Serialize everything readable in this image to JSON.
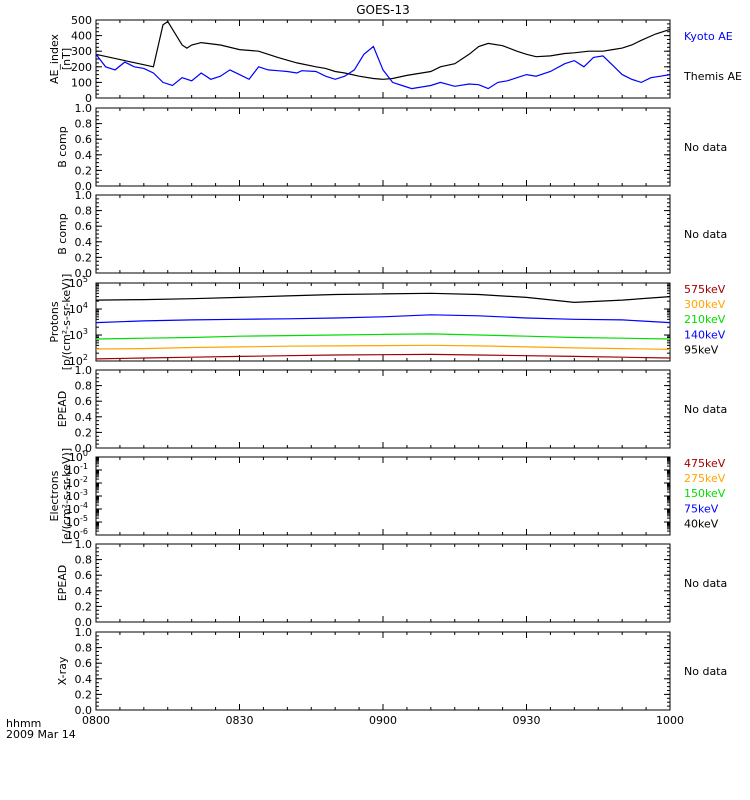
{
  "title": "GOES-13",
  "footer": {
    "line1": "hhmm",
    "line2": "2009 Mar 14"
  },
  "time_axis": {
    "ticks": [
      "0800",
      "0830",
      "0900",
      "0930",
      "1000"
    ],
    "tick_minutes": [
      0,
      30,
      60,
      90,
      120
    ]
  },
  "colors": {
    "black": "#000000",
    "blue": "#0000ff",
    "red": "#a00000",
    "orange": "#ffa500",
    "green": "#00dd00"
  },
  "chart_data": [
    {
      "id": "ae",
      "type": "line",
      "ylabel_lines": [
        "AE_index",
        "[nT]"
      ],
      "ylim": [
        0,
        500
      ],
      "yticks": [
        0,
        100,
        200,
        300,
        400,
        500
      ],
      "scale": "linear",
      "x_unit": "minutes after 08:00 UT",
      "legend": [
        {
          "text": "Kyoto AE",
          "color": "#0000ff"
        },
        {
          "text": "Themis AE",
          "color": "#000000"
        }
      ],
      "series": [
        {
          "name": "Themis AE",
          "color": "#000000",
          "x": [
            0,
            3,
            6,
            9,
            12,
            14,
            15,
            18,
            19,
            20,
            22,
            26,
            30,
            34,
            38,
            42,
            46,
            48,
            50,
            52,
            55,
            58,
            60,
            62,
            65,
            70,
            72,
            75,
            78,
            80,
            82,
            85,
            88,
            90,
            92,
            95,
            98,
            100,
            103,
            106,
            108,
            110,
            112,
            114,
            117,
            120
          ],
          "y": [
            280,
            260,
            240,
            220,
            200,
            470,
            490,
            340,
            320,
            340,
            355,
            340,
            310,
            300,
            260,
            225,
            200,
            190,
            170,
            160,
            140,
            125,
            120,
            125,
            145,
            170,
            200,
            220,
            280,
            330,
            350,
            335,
            300,
            280,
            265,
            270,
            285,
            290,
            300,
            300,
            310,
            320,
            340,
            370,
            410,
            440
          ]
        },
        {
          "name": "Kyoto AE",
          "color": "#0000ff",
          "x": [
            0,
            2,
            4,
            6,
            8,
            10,
            12,
            14,
            16,
            18,
            20,
            22,
            24,
            26,
            28,
            30,
            32,
            34,
            36,
            38,
            40,
            42,
            43,
            46,
            48,
            50,
            52,
            54,
            56,
            58,
            60,
            62,
            64,
            66,
            70,
            72,
            75,
            78,
            80,
            82,
            84,
            86,
            88,
            90,
            92,
            95,
            98,
            100,
            102,
            104,
            106,
            108,
            110,
            112,
            114,
            116,
            118,
            120
          ],
          "y": [
            280,
            200,
            180,
            230,
            200,
            190,
            160,
            100,
            80,
            130,
            110,
            160,
            120,
            140,
            180,
            150,
            120,
            200,
            180,
            175,
            170,
            160,
            175,
            170,
            140,
            120,
            140,
            180,
            280,
            330,
            180,
            100,
            80,
            60,
            80,
            100,
            75,
            90,
            85,
            60,
            100,
            110,
            130,
            150,
            140,
            170,
            220,
            240,
            200,
            260,
            270,
            210,
            150,
            120,
            100,
            130,
            140,
            150
          ]
        }
      ]
    },
    {
      "id": "bcomp1",
      "type": "line",
      "ylabel_lines": [
        "B comp"
      ],
      "ylim": [
        0,
        1
      ],
      "yticks": [
        0.0,
        0.2,
        0.4,
        0.6,
        0.8,
        1.0
      ],
      "tick_labels": [
        "0.0",
        "0.2",
        "0.4",
        "0.6",
        "0.8",
        "1.0"
      ],
      "scale": "linear",
      "status": "No data",
      "series": []
    },
    {
      "id": "bcomp2",
      "type": "line",
      "ylabel_lines": [
        "B comp"
      ],
      "ylim": [
        0,
        1
      ],
      "yticks": [
        0.0,
        0.2,
        0.4,
        0.6,
        0.8,
        1.0
      ],
      "tick_labels": [
        "0.0",
        "0.2",
        "0.4",
        "0.6",
        "0.8",
        "1.0"
      ],
      "scale": "linear",
      "status": "No data",
      "series": []
    },
    {
      "id": "protons",
      "type": "line",
      "ylabel_lines": [
        "Protons",
        "[p/(cm²-s-sr-keV)]"
      ],
      "scale": "log",
      "ylim": [
        100,
        100000
      ],
      "yticks": [
        100,
        1000,
        10000,
        100000
      ],
      "tick_labels": [
        {
          "base": "10",
          "exp": "2"
        },
        {
          "base": "10",
          "exp": "3"
        },
        {
          "base": "10",
          "exp": "4"
        },
        {
          "base": "10",
          "exp": "5"
        }
      ],
      "x_unit": "minutes after 08:00 UT",
      "legend": [
        {
          "text": "575keV",
          "color": "#a00000"
        },
        {
          "text": "300keV",
          "color": "#ffa500"
        },
        {
          "text": "210keV",
          "color": "#00dd00"
        },
        {
          "text": "140keV",
          "color": "#0000ff"
        },
        {
          "text": "95keV",
          "color": "#000000"
        }
      ],
      "series": [
        {
          "name": "95keV",
          "color": "#000000",
          "x": [
            0,
            10,
            20,
            30,
            40,
            50,
            60,
            70,
            80,
            90,
            100,
            110,
            120
          ],
          "y": [
            22000,
            23000,
            25000,
            28000,
            32000,
            36000,
            38000,
            40000,
            36000,
            28000,
            18000,
            22000,
            30000
          ]
        },
        {
          "name": "140keV",
          "color": "#0000ff",
          "x": [
            0,
            10,
            20,
            30,
            40,
            50,
            60,
            70,
            80,
            90,
            100,
            110,
            120
          ],
          "y": [
            3000,
            3500,
            3800,
            4000,
            4200,
            4500,
            5000,
            6000,
            5500,
            4500,
            4000,
            3800,
            3000
          ]
        },
        {
          "name": "210keV",
          "color": "#00dd00",
          "x": [
            0,
            10,
            20,
            30,
            40,
            50,
            60,
            70,
            80,
            90,
            100,
            110,
            120
          ],
          "y": [
            700,
            750,
            800,
            900,
            950,
            1000,
            1050,
            1100,
            1000,
            900,
            800,
            750,
            700
          ]
        },
        {
          "name": "300keV",
          "color": "#ffa500",
          "x": [
            0,
            10,
            20,
            30,
            40,
            50,
            60,
            70,
            80,
            90,
            100,
            110,
            120
          ],
          "y": [
            290,
            300,
            330,
            350,
            370,
            380,
            390,
            400,
            380,
            350,
            320,
            300,
            280
          ]
        },
        {
          "name": "575keV",
          "color": "#a00000",
          "x": [
            0,
            10,
            20,
            30,
            40,
            50,
            60,
            70,
            80,
            90,
            100,
            110,
            120
          ],
          "y": [
            120,
            130,
            140,
            150,
            160,
            170,
            175,
            180,
            170,
            160,
            150,
            140,
            130
          ]
        }
      ]
    },
    {
      "id": "epead1",
      "type": "line",
      "ylabel_lines": [
        "EPEAD"
      ],
      "ylim": [
        0,
        1
      ],
      "yticks": [
        0.0,
        0.2,
        0.4,
        0.6,
        0.8,
        1.0
      ],
      "tick_labels": [
        "0.0",
        "0.2",
        "0.4",
        "0.6",
        "0.8",
        "1.0"
      ],
      "scale": "linear",
      "status": "No data",
      "series": []
    },
    {
      "id": "electrons",
      "type": "line",
      "ylabel_lines": [
        "Electrons",
        "[e/(cm²-s-sr-keV)]"
      ],
      "scale": "log",
      "ylim": [
        1e-06,
        1
      ],
      "yticks": [
        1,
        0.1,
        0.01,
        0.001,
        0.0001,
        1e-05,
        1e-06
      ],
      "tick_labels": [
        {
          "base": "10",
          "exp": "0"
        },
        {
          "base": "10",
          "exp": "-1"
        },
        {
          "base": "10",
          "exp": "-2"
        },
        {
          "base": "10",
          "exp": "-3"
        },
        {
          "base": "10",
          "exp": "-4"
        },
        {
          "base": "10",
          "exp": "-5"
        },
        {
          "base": "10",
          "exp": "-6"
        }
      ],
      "legend": [
        {
          "text": "475keV",
          "color": "#a00000"
        },
        {
          "text": "275keV",
          "color": "#ffa500"
        },
        {
          "text": "150keV",
          "color": "#00dd00"
        },
        {
          "text": "75keV",
          "color": "#0000ff"
        },
        {
          "text": "40keV",
          "color": "#000000"
        }
      ],
      "series": []
    },
    {
      "id": "epead2",
      "type": "line",
      "ylabel_lines": [
        "EPEAD"
      ],
      "ylim": [
        0,
        1
      ],
      "yticks": [
        0.0,
        0.2,
        0.4,
        0.6,
        0.8,
        1.0
      ],
      "tick_labels": [
        "0.0",
        "0.2",
        "0.4",
        "0.6",
        "0.8",
        "1.0"
      ],
      "scale": "linear",
      "status": "No data",
      "series": []
    },
    {
      "id": "xray",
      "type": "line",
      "ylabel_lines": [
        "X-ray"
      ],
      "ylim": [
        0,
        1
      ],
      "yticks": [
        0.0,
        0.2,
        0.4,
        0.6,
        0.8,
        1.0
      ],
      "tick_labels": [
        "0.0",
        "0.2",
        "0.4",
        "0.6",
        "0.8",
        "1.0"
      ],
      "scale": "linear",
      "status": "No data",
      "series": []
    }
  ]
}
